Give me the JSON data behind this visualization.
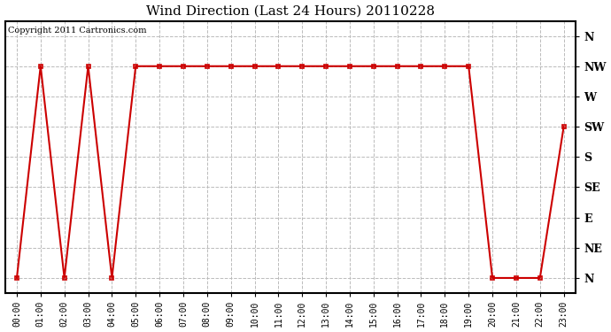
{
  "title": "Wind Direction (Last 24 Hours) 20110228",
  "copyright": "Copyright 2011 Cartronics.com",
  "background_color": "#ffffff",
  "line_color": "#cc0000",
  "marker_color": "#cc0000",
  "grid_color": "#bbbbbb",
  "x_labels": [
    "00:00",
    "01:00",
    "02:00",
    "03:00",
    "04:00",
    "05:00",
    "06:00",
    "07:00",
    "08:00",
    "09:00",
    "10:00",
    "11:00",
    "12:00",
    "13:00",
    "14:00",
    "15:00",
    "16:00",
    "17:00",
    "18:00",
    "19:00",
    "20:00",
    "21:00",
    "22:00",
    "23:00"
  ],
  "y_labels": [
    "N",
    "NE",
    "E",
    "SE",
    "S",
    "SW",
    "W",
    "NW",
    "N"
  ],
  "y_values": [
    0,
    1,
    2,
    3,
    4,
    5,
    6,
    7,
    8
  ],
  "data_x": [
    0,
    1,
    2,
    3,
    4,
    5,
    6,
    7,
    8,
    9,
    10,
    11,
    12,
    13,
    14,
    15,
    16,
    17,
    18,
    19,
    20,
    21,
    22,
    23
  ],
  "data_y": [
    0,
    7,
    0,
    7,
    0,
    7,
    7,
    7,
    7,
    7,
    7,
    7,
    7,
    7,
    7,
    7,
    7,
    7,
    7,
    7,
    0,
    0,
    0,
    5
  ]
}
